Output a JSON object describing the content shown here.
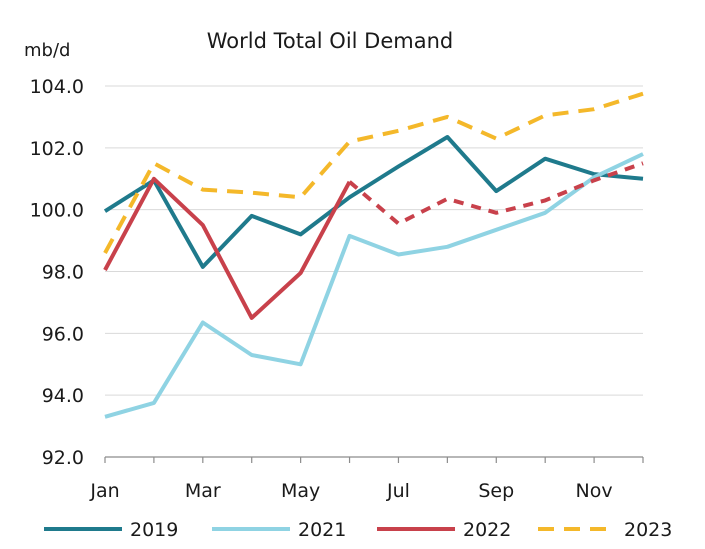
{
  "chart_data": {
    "type": "line",
    "title": "World Total Oil Demand",
    "unit_label": "mb/d",
    "ylim": [
      92.0,
      104.0
    ],
    "y_ticks": [
      "92.0",
      "94.0",
      "96.0",
      "98.0",
      "100.0",
      "102.0",
      "104.0"
    ],
    "y_tick_values": [
      92,
      94,
      96,
      98,
      100,
      102,
      104
    ],
    "categories": [
      "Jan",
      "Feb",
      "Mar",
      "Apr",
      "May",
      "Jun",
      "Jul",
      "Aug",
      "Sep",
      "Oct",
      "Nov",
      "Dec"
    ],
    "x_tick_labels": [
      "Jan",
      "",
      "Mar",
      "",
      "May",
      "",
      "Jul",
      "",
      "Sep",
      "",
      "Nov",
      ""
    ],
    "grid": "horizontal",
    "legend_position": "bottom",
    "series": [
      {
        "name": "2019",
        "color": "#1f7a8c",
        "style": "solid",
        "values": [
          99.95,
          100.95,
          98.15,
          99.8,
          99.2,
          100.4,
          101.4,
          102.35,
          100.6,
          101.65,
          101.15,
          101.0
        ]
      },
      {
        "name": "2021",
        "color": "#8fd3e3",
        "style": "solid",
        "values": [
          93.3,
          93.75,
          96.35,
          95.3,
          95.0,
          99.15,
          98.55,
          98.8,
          99.35,
          99.9,
          101.05,
          101.8
        ]
      },
      {
        "name": "2022",
        "color": "#c8414b",
        "style": "solid-then-dashed",
        "dash_from_index": 5,
        "values": [
          98.05,
          101.0,
          99.5,
          96.5,
          97.95,
          100.9,
          99.55,
          100.35,
          99.9,
          100.3,
          100.95,
          101.5
        ]
      },
      {
        "name": "2023",
        "color": "#f4b82a",
        "style": "dashed",
        "values": [
          98.6,
          101.5,
          100.65,
          100.55,
          100.4,
          102.2,
          102.55,
          103.0,
          102.3,
          103.05,
          103.25,
          103.75
        ]
      }
    ]
  }
}
